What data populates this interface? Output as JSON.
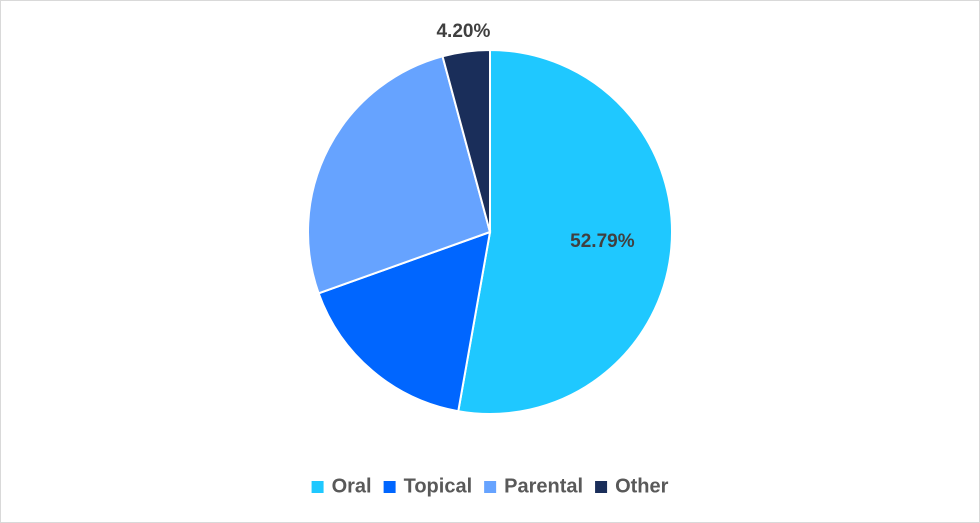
{
  "chart_data": {
    "type": "pie",
    "categories": [
      "Oral",
      "Topical",
      "Parental",
      "Other"
    ],
    "values": [
      52.79,
      16.74,
      26.27,
      4.2
    ],
    "value_labels": [
      "52.79%",
      null,
      null,
      "4.20%"
    ],
    "colors": [
      "#1fc8ff",
      "#0066ff",
      "#66a3ff",
      "#1a2e5a"
    ],
    "legend": "bottom"
  }
}
